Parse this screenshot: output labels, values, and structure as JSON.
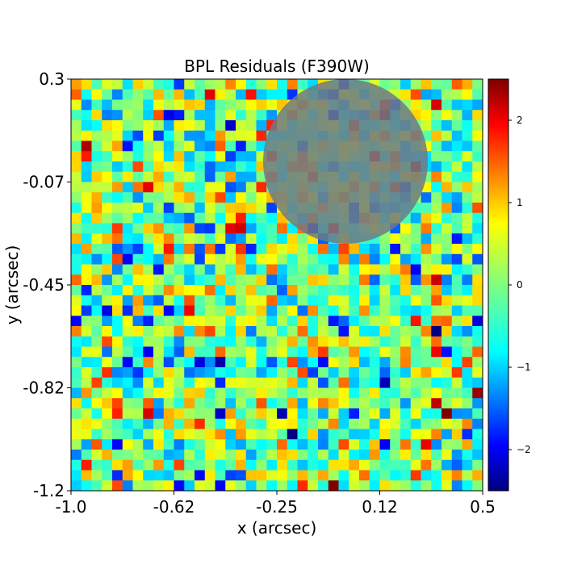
{
  "chart_data": {
    "type": "heatmap",
    "title": "BPL Residuals (F390W)",
    "xlabel": "x (arcsec)",
    "ylabel": "y (arcsec)",
    "xlim": [
      -1.0,
      0.5
    ],
    "ylim": [
      -1.2,
      0.3
    ],
    "x_tick_labels": [
      "-1.0",
      "-0.62",
      "-0.25",
      "0.12",
      "0.5"
    ],
    "y_tick_labels": [
      "0.3",
      "-0.07",
      "-0.45",
      "-0.82",
      "-1.2"
    ],
    "colormap": "jet",
    "colorbar": {
      "range": [
        -2.5,
        2.5
      ],
      "ticks": [
        2,
        1,
        0,
        -1,
        -2
      ],
      "tick_labels": [
        "2",
        "1",
        "0",
        "−1",
        "−2"
      ]
    },
    "grid_size": [
      40,
      40
    ],
    "mask_circle": {
      "center": [
        0.0,
        0.0
      ],
      "radius": 0.3,
      "color": "#6e7a85",
      "opacity": 0.85
    },
    "values_note": "Pixel residual values range approximately from -2.5 to 2.5 with mostly near-zero noise."
  }
}
